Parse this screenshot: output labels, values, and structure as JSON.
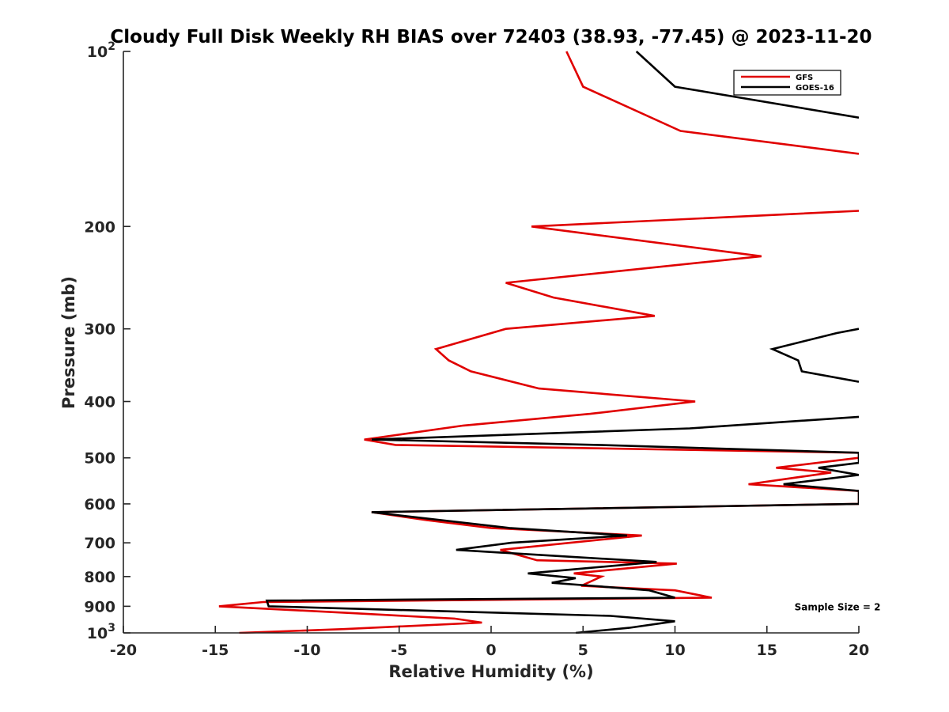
{
  "chart_data": {
    "type": "line",
    "title": "Cloudy Full Disk Weekly RH BIAS over 72403 (38.93, -77.45) @ 2023-11-20",
    "xlabel": "Relative Humidity (%)",
    "ylabel": "Pressure (mb)",
    "xlim": [
      -20,
      20
    ],
    "ylim": [
      100,
      1000
    ],
    "y_scale": "log",
    "y_reversed": true,
    "xticks": [
      -20,
      -15,
      -10,
      -5,
      0,
      5,
      10,
      15,
      20
    ],
    "xtick_labels": [
      "-20",
      "-15",
      "-10",
      "-5",
      "0",
      "5",
      "10",
      "15",
      "20"
    ],
    "yticks": [
      100,
      200,
      300,
      400,
      500,
      600,
      700,
      800,
      900,
      1000
    ],
    "ytick_labels": [
      {
        "base": "10",
        "exp": "2"
      },
      {
        "base": "200",
        "exp": ""
      },
      {
        "base": "300",
        "exp": ""
      },
      {
        "base": "400",
        "exp": ""
      },
      {
        "base": "500",
        "exp": ""
      },
      {
        "base": "600",
        "exp": ""
      },
      {
        "base": "700",
        "exp": ""
      },
      {
        "base": "800",
        "exp": ""
      },
      {
        "base": "900",
        "exp": ""
      },
      {
        "base": "10",
        "exp": "3"
      }
    ],
    "grid": false,
    "legend_position": "top-right",
    "series": [
      {
        "name": "GFS",
        "color": "#e00000",
        "points": [
          [
            4.1,
            100
          ],
          [
            5.0,
            115
          ],
          [
            10.3,
            137
          ],
          [
            20,
            150
          ],
          [
            null,
            null
          ],
          [
            20,
            188
          ],
          [
            2.2,
            200
          ],
          [
            14.7,
            225
          ],
          [
            0.8,
            250
          ],
          [
            3.4,
            265
          ],
          [
            8.9,
            285
          ],
          [
            0.8,
            300
          ],
          [
            -3.0,
            325
          ],
          [
            -2.3,
            340
          ],
          [
            -1.1,
            355
          ],
          [
            2.6,
            380
          ],
          [
            11.1,
            400
          ],
          [
            5.4,
            420
          ],
          [
            -1.5,
            440
          ],
          [
            -6.9,
            465
          ],
          [
            -5.2,
            475
          ],
          [
            20,
            490
          ],
          [
            20,
            500
          ],
          [
            15.5,
            520
          ],
          [
            18.5,
            530
          ],
          [
            14.0,
            555
          ],
          [
            20,
            570
          ],
          [
            20,
            600
          ],
          [
            -6.5,
            620
          ],
          [
            -3.5,
            640
          ],
          [
            0,
            660
          ],
          [
            8.2,
            680
          ],
          [
            0.5,
            720
          ],
          [
            2.5,
            750
          ],
          [
            10.1,
            760
          ],
          [
            4.5,
            790
          ],
          [
            6.0,
            800
          ],
          [
            4.9,
            830
          ],
          [
            10.0,
            845
          ],
          [
            12.0,
            870
          ],
          [
            -12.4,
            885
          ],
          [
            -14.8,
            900
          ],
          [
            -7.5,
            925
          ],
          [
            -2.0,
            945
          ],
          [
            -0.5,
            960
          ],
          [
            -8.0,
            985
          ],
          [
            -13.7,
            1000
          ]
        ]
      },
      {
        "name": "GOES-16",
        "color": "#000000",
        "points": [
          [
            7.9,
            100
          ],
          [
            10.0,
            115
          ],
          [
            20,
            130
          ],
          [
            null,
            null
          ],
          [
            20,
            300
          ],
          [
            18.8,
            305
          ],
          [
            15.3,
            325
          ],
          [
            16.7,
            340
          ],
          [
            16.9,
            355
          ],
          [
            20,
            370
          ],
          [
            null,
            null
          ],
          [
            20,
            425
          ],
          [
            10.8,
            445
          ],
          [
            -6.5,
            465
          ],
          [
            5.8,
            475
          ],
          [
            20,
            490
          ],
          [
            20,
            510
          ],
          [
            17.8,
            520
          ],
          [
            20,
            535
          ],
          [
            15.9,
            555
          ],
          [
            20,
            570
          ],
          [
            20,
            600
          ],
          [
            -6.5,
            620
          ],
          [
            -2.7,
            640
          ],
          [
            1.0,
            660
          ],
          [
            7.4,
            680
          ],
          [
            1.1,
            700
          ],
          [
            -1.9,
            720
          ],
          [
            9.0,
            755
          ],
          [
            2.0,
            790
          ],
          [
            4.6,
            805
          ],
          [
            3.3,
            820
          ],
          [
            5.5,
            830
          ],
          [
            8.6,
            845
          ],
          [
            10.0,
            870
          ],
          [
            -12.2,
            880
          ],
          [
            -12.1,
            900
          ],
          [
            6.5,
            935
          ],
          [
            10.0,
            955
          ],
          [
            7.5,
            980
          ],
          [
            4.6,
            1000
          ]
        ]
      }
    ],
    "annotations": [
      {
        "text": "Sample Size = 2",
        "x": 16.5,
        "y": 900
      }
    ]
  }
}
